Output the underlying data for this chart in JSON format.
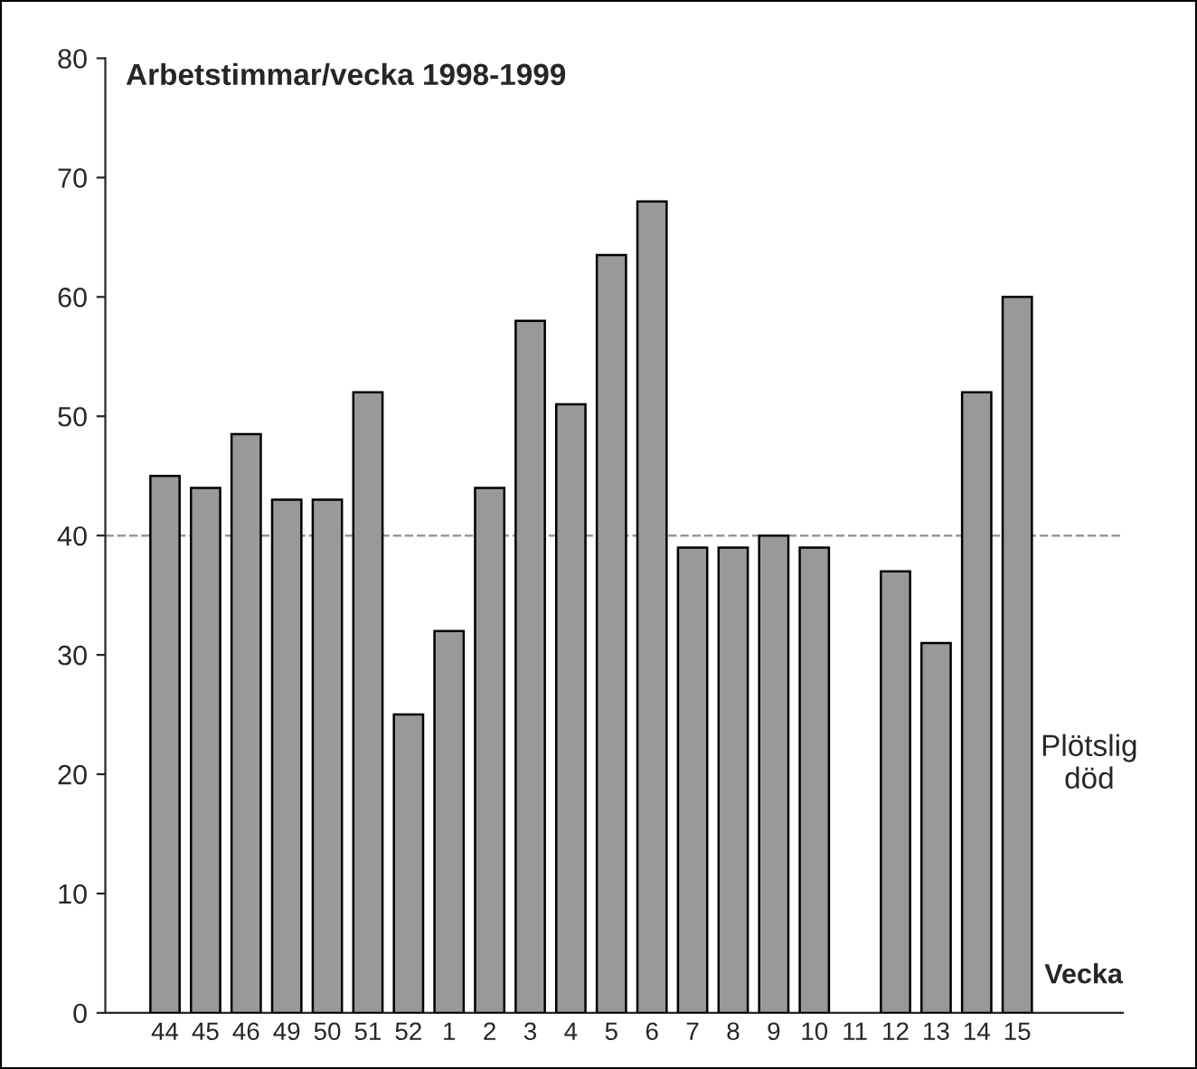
{
  "chart_data": {
    "type": "bar",
    "title": "Arbetstimmar/vecka 1998-1999",
    "xlabel": "Vecka",
    "categories": [
      "44",
      "45",
      "46",
      "49",
      "50",
      "51",
      "52",
      "1",
      "2",
      "3",
      "4",
      "5",
      "6",
      "7",
      "8",
      "9",
      "10",
      "11",
      "12",
      "13",
      "14",
      "15"
    ],
    "values": [
      45,
      44,
      48.5,
      43,
      43,
      52,
      25,
      32,
      44,
      58,
      51,
      63.5,
      68,
      39,
      39,
      40,
      39,
      null,
      37,
      31,
      52,
      60
    ],
    "color": "#999999",
    "ylim": [
      0,
      80
    ],
    "yticks": [
      0,
      10,
      20,
      30,
      40,
      50,
      60,
      70,
      80
    ],
    "ref_lines": [
      {
        "axis": "y",
        "value": 40,
        "color": "#999999",
        "line_style": "dashed"
      }
    ],
    "annotations": [
      "Plötslig död"
    ]
  }
}
